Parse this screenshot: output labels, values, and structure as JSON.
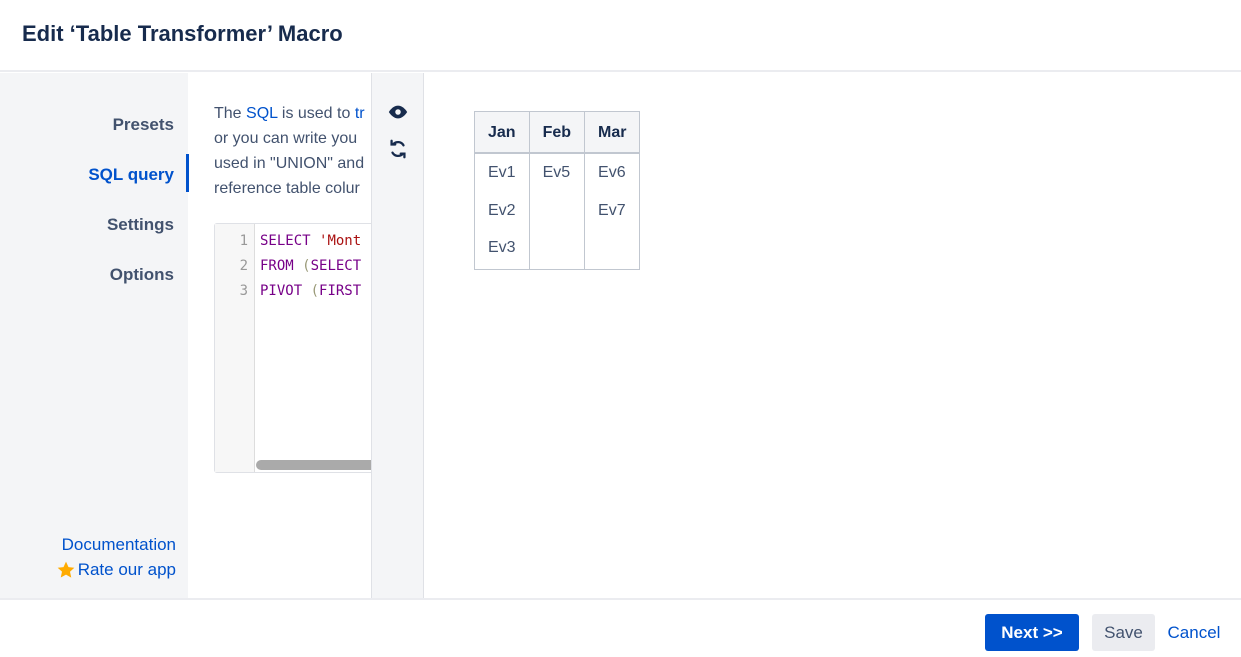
{
  "header": {
    "title": "Edit ‘Table Transformer’ Macro"
  },
  "sidebar": {
    "items": [
      {
        "label": "Presets"
      },
      {
        "label": "SQL query",
        "active": true
      },
      {
        "label": "Settings"
      },
      {
        "label": "Options"
      }
    ],
    "documentation": "Documentation",
    "rate": "Rate our app"
  },
  "description": {
    "l1_a": "The ",
    "l1_link": "SQL",
    "l1_b": " is used to ",
    "l1_link2": "tr",
    "l2": "or you can write you",
    "l3": "used in \"UNION\" and",
    "l4": "reference table colur"
  },
  "editor": {
    "lines": [
      {
        "n": "1",
        "kw": "SELECT ",
        "rest": "'Mont",
        "rest_type": "str"
      },
      {
        "n": "2",
        "kw": "FROM ",
        "paren": "(",
        "rest": "SELECT",
        "rest_type": "kw"
      },
      {
        "n": "3",
        "kw": "PIVOT ",
        "paren": "(",
        "rest": "FIRST",
        "rest_type": "kw"
      }
    ]
  },
  "toolbar": {
    "icons": [
      "eye-icon",
      "refresh-icon"
    ]
  },
  "preview": {
    "columns": [
      "Jan",
      "Feb",
      "Mar"
    ],
    "cells": [
      [
        "Ev1",
        "Ev2",
        "Ev3"
      ],
      [
        "Ev5"
      ],
      [
        "Ev6",
        "Ev7"
      ]
    ]
  },
  "footer": {
    "next": "Next >>",
    "save": "Save",
    "cancel": "Cancel"
  },
  "colors": {
    "accent": "#0052cc",
    "star": "#ffab00"
  }
}
